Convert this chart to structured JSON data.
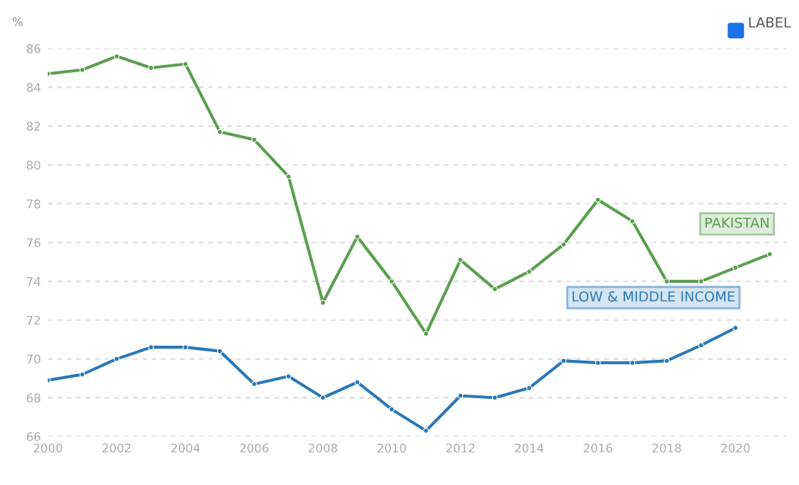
{
  "chart_data": {
    "type": "line",
    "ylabel": "%",
    "annotations": [
      "LABEL"
    ],
    "x": [
      2000,
      2001,
      2002,
      2003,
      2004,
      2005,
      2006,
      2007,
      2008,
      2009,
      2010,
      2011,
      2012,
      2013,
      2014,
      2015,
      2016,
      2017,
      2018,
      2019,
      2020,
      2021
    ],
    "series": [
      {
        "name": "PAKISTAN",
        "color": "#5a9e4f",
        "values": [
          84.7,
          84.9,
          85.6,
          85.0,
          85.2,
          81.7,
          81.3,
          79.4,
          72.9,
          76.3,
          74.0,
          71.3,
          75.1,
          73.6,
          74.5,
          75.9,
          78.2,
          77.1,
          74.0,
          74.0,
          74.7,
          75.4
        ]
      },
      {
        "name": "LOW & MIDDLE INCOME",
        "color": "#2a78b8",
        "values": [
          68.9,
          69.2,
          70.0,
          70.6,
          70.6,
          70.4,
          68.7,
          69.1,
          68.0,
          68.8,
          67.4,
          66.3,
          68.1,
          68.0,
          68.5,
          69.9,
          69.8,
          69.8,
          69.9,
          70.7,
          71.6,
          null
        ]
      }
    ],
    "xlim": [
      2000,
      2021.5
    ],
    "xticks": [
      2000,
      2002,
      2004,
      2006,
      2008,
      2010,
      2012,
      2014,
      2016,
      2018,
      2020
    ],
    "ylim": [
      66,
      86
    ],
    "yticks": [
      66,
      68,
      70,
      72,
      74,
      76,
      78,
      80,
      82,
      84,
      86
    ],
    "grid": "y",
    "legend": false,
    "marker": "circle",
    "line_style": "solid"
  }
}
